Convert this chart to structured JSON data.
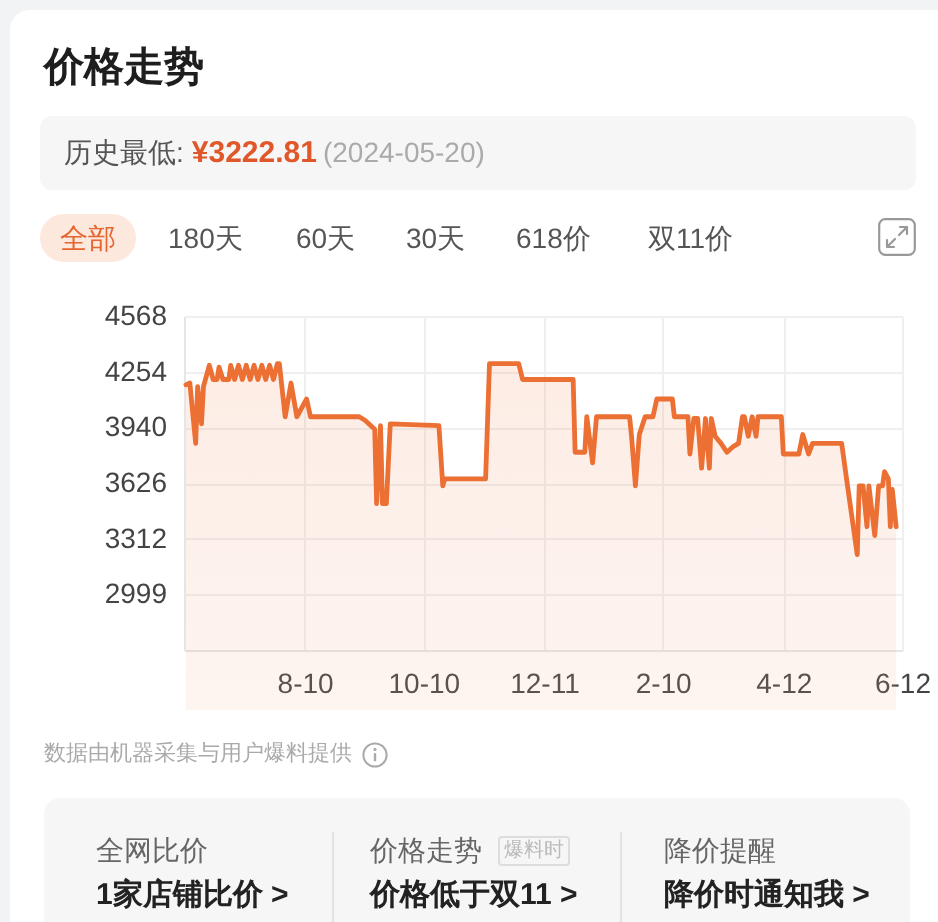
{
  "chart_data": {
    "type": "area",
    "title": "价格走势",
    "annotations": [
      "历史最低:",
      "¥3222.81",
      "(2024-05-20)",
      "全部",
      "180天",
      "60天",
      "30天",
      "618价",
      "双11价",
      "数据由机器采集与用户爆料提供",
      "全网比价",
      "1家店铺比价 >",
      "价格走势",
      "爆料时",
      "价格低于双11 >",
      "降价提醒",
      "降价时通知我 >"
    ],
    "x": [
      "2023-06-10",
      "2023-06-12",
      "2023-06-15",
      "2023-06-16",
      "2023-06-18",
      "2023-06-19",
      "2023-06-22",
      "2023-06-24",
      "2023-06-26",
      "2023-06-27",
      "2023-06-29",
      "2023-07-02",
      "2023-07-03",
      "2023-07-05",
      "2023-07-07",
      "2023-07-09",
      "2023-07-11",
      "2023-07-13",
      "2023-07-15",
      "2023-07-17",
      "2023-07-19",
      "2023-07-21",
      "2023-07-23",
      "2023-07-25",
      "2023-07-27",
      "2023-07-28",
      "2023-07-31",
      "2023-08-03",
      "2023-08-06",
      "2023-08-11",
      "2023-08-13",
      "2023-09-07",
      "2023-09-10",
      "2023-09-15",
      "2023-09-16",
      "2023-09-18",
      "2023-09-19",
      "2023-09-21",
      "2023-09-23",
      "2023-10-18",
      "2023-10-20",
      "2023-10-21",
      "2023-11-11",
      "2023-11-13",
      "2023-11-28",
      "2023-11-30",
      "2023-12-26",
      "2023-12-27",
      "2024-01-01",
      "2024-01-02",
      "2024-01-05",
      "2024-01-07",
      "2024-01-24",
      "2024-01-25",
      "2024-01-27",
      "2024-01-29",
      "2024-02-01",
      "2024-02-05",
      "2024-02-07",
      "2024-02-15",
      "2024-02-16",
      "2024-02-23",
      "2024-02-24",
      "2024-02-26",
      "2024-02-28",
      "2024-03-01",
      "2024-03-03",
      "2024-03-05",
      "2024-03-06",
      "2024-03-08",
      "2024-03-11",
      "2024-03-14",
      "2024-03-17",
      "2024-03-20",
      "2024-03-22",
      "2024-03-23",
      "2024-03-25",
      "2024-03-27",
      "2024-03-29",
      "2024-03-30",
      "2024-04-11",
      "2024-04-12",
      "2024-04-20",
      "2024-04-22",
      "2024-04-25",
      "2024-04-27",
      "2024-05-12",
      "2024-05-15",
      "2024-05-20",
      "2024-05-21",
      "2024-05-23",
      "2024-05-25",
      "2024-05-26",
      "2024-05-29",
      "2024-05-31",
      "2024-06-02",
      "2024-06-03",
      "2024-06-05",
      "2024-06-06",
      "2024-06-07",
      "2024-06-09"
    ],
    "values": [
      4180,
      4190,
      3850,
      4170,
      3960,
      4170,
      4290,
      4210,
      4210,
      4280,
      4210,
      4210,
      4290,
      4210,
      4290,
      4210,
      4290,
      4210,
      4290,
      4210,
      4290,
      4210,
      4290,
      4210,
      4300,
      4300,
      4000,
      4190,
      4000,
      4100,
      4000,
      4000,
      3980,
      3930,
      3510,
      3950,
      3510,
      3510,
      3960,
      3950,
      3610,
      3650,
      3650,
      4300,
      4300,
      4210,
      4210,
      3800,
      3800,
      4000,
      3740,
      4000,
      4000,
      3890,
      3610,
      3900,
      4000,
      4000,
      4100,
      4100,
      4000,
      4000,
      3790,
      3990,
      3990,
      3710,
      3990,
      3710,
      3990,
      3890,
      3850,
      3800,
      3830,
      3850,
      4000,
      4000,
      3890,
      4000,
      3890,
      4000,
      4000,
      3790,
      3790,
      3900,
      3790,
      3850,
      3850,
      3610,
      3222.81,
      3610,
      3610,
      3380,
      3610,
      3330,
      3610,
      3610,
      3690,
      3650,
      3380,
      3590,
      3380
    ],
    "color": "#ec6f33",
    "xlim": [
      "2023-06-09",
      "2024-06-12"
    ],
    "xticks": [
      {
        "value": "2023-08-10",
        "label": "8-10"
      },
      {
        "value": "2023-10-10",
        "label": "10-10"
      },
      {
        "value": "2023-12-11",
        "label": "12-11"
      },
      {
        "value": "2024-02-10",
        "label": "2-10"
      },
      {
        "value": "2024-04-12",
        "label": "4-12"
      },
      {
        "value": "2024-06-12",
        "label": "6-12"
      }
    ],
    "ylim": [
      2685,
      4568
    ],
    "yticks": [
      2999,
      3312,
      3626,
      3940,
      4254,
      4568
    ],
    "grid": true
  }
}
